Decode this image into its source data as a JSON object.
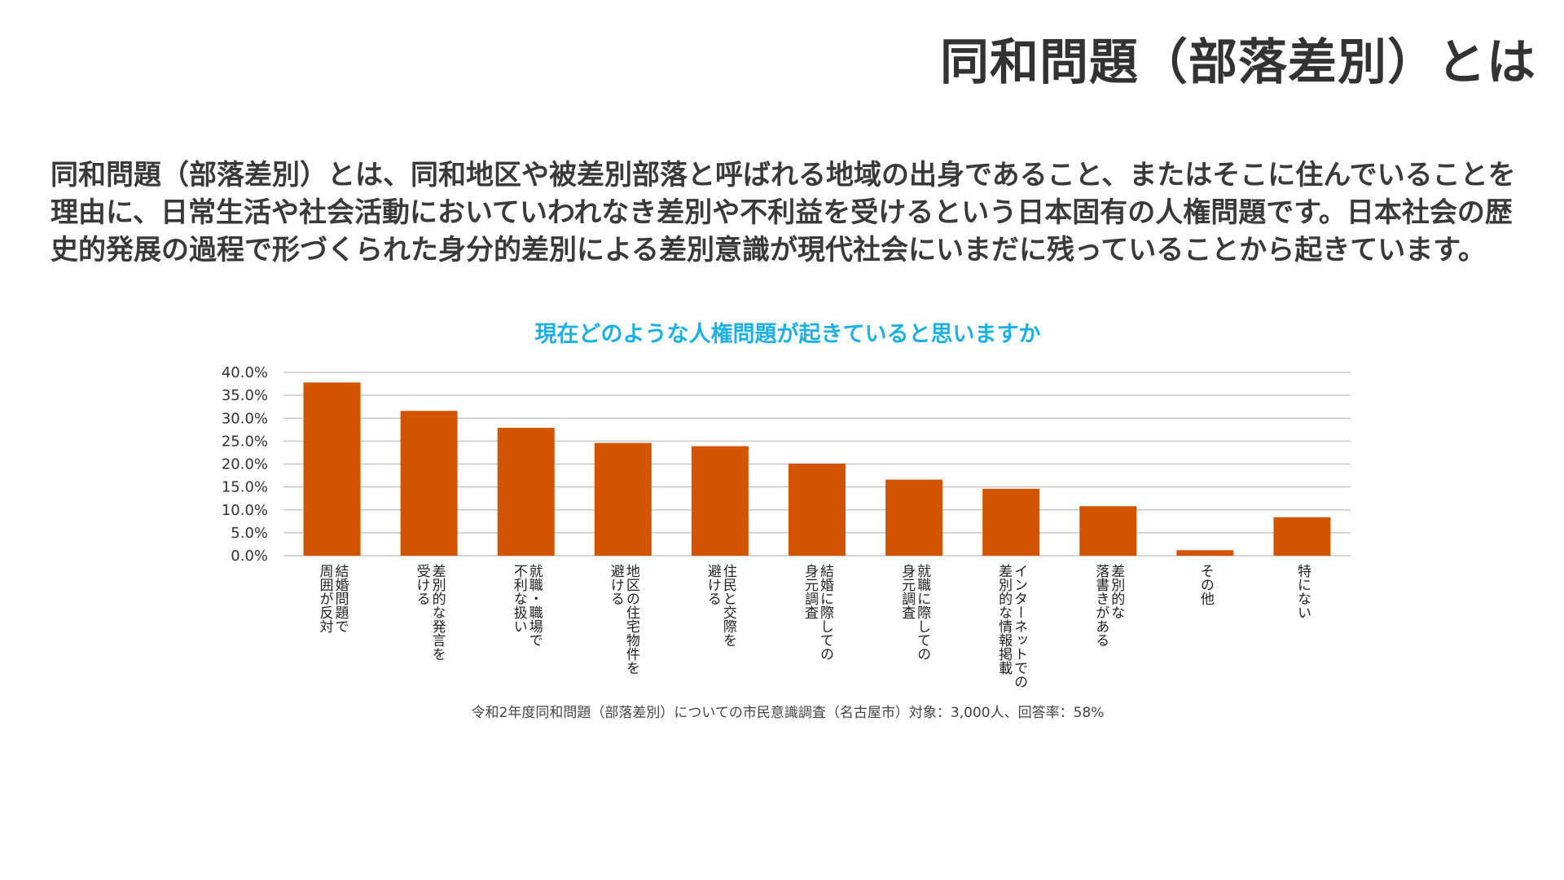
{
  "page": {
    "title": "同和問題（部落差別）とは",
    "description": "同和問題（部落差別）とは、同和地区や被差別部落と呼ばれる地域の出身であること、またはそこに住んでいることを理由に、日常生活や社会活動においていわれなき差別や不利益を受けるという日本固有の人権問題です。日本社会の歴史的発展の過程で形づくられた身分的差別による差別意識が現代社会にいまだに残っていることから起きています。"
  },
  "chart_data": {
    "type": "bar",
    "title": "現在どのような人権問題が起きていると思いますか",
    "categories": [
      "結婚問題で\n周囲が反対",
      "差別的な発言を\n受ける",
      "就職・職場で\n不利な扱い",
      "地区の住宅物件を\n避ける",
      "住民と交際を\n避ける",
      "結婚に際しての\n身元調査",
      "就職に際しての\n身元調査",
      "インターネットでの\n差別的な情報掲載",
      "差別的な\n落書きがある",
      "その他",
      "特にない"
    ],
    "values": [
      37.8,
      31.6,
      27.9,
      24.6,
      23.9,
      20.1,
      16.6,
      14.6,
      10.8,
      1.2,
      8.4
    ],
    "ylim": [
      0,
      40
    ],
    "yticks": [
      "0.0%",
      "5.0%",
      "10.0%",
      "15.0%",
      "20.0%",
      "25.0%",
      "30.0%",
      "35.0%",
      "40.0%"
    ],
    "xlabel": "",
    "ylabel": "",
    "grid": true,
    "bar_color": "#d35400",
    "caption": "令和2年度同和問題（部落差別）についての市民意識調査（名古屋市）対象：3,000人、回答率：58%"
  }
}
